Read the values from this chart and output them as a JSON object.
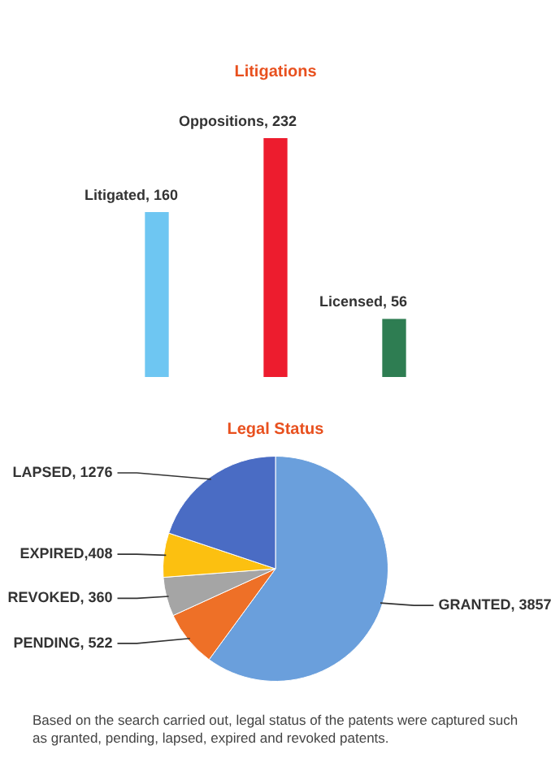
{
  "chart_data": [
    {
      "type": "bar",
      "title": "Litigations",
      "categories": [
        "Litigated",
        "Oppositions",
        "Licensed"
      ],
      "values": [
        160,
        232,
        56
      ],
      "colors": [
        "#6ec6f2",
        "#ed1c2e",
        "#2e7d52"
      ],
      "value_labels": [
        ", 160",
        ", 232",
        ", 56"
      ],
      "tick_labels": false,
      "legend": false
    },
    {
      "type": "pie",
      "title": "Legal Status",
      "categories": [
        "GRANTED",
        "PENDING",
        "REVOKED",
        "EXPIRED",
        "LAPSED"
      ],
      "values": [
        3857,
        522,
        360,
        408,
        1276
      ],
      "colors": [
        "#6a9fdc",
        "#ee7027",
        "#a5a5a5",
        "#fcc010",
        "#4a6cc4"
      ],
      "value_labels": [
        ", 3857",
        ", 522",
        ", 360",
        ",408",
        ", 1276"
      ],
      "legend": false,
      "annotations": [
        "Based on the search carried out, legal status of the patents were captured such as granted, pending, lapsed, expired and revoked patents."
      ]
    }
  ]
}
